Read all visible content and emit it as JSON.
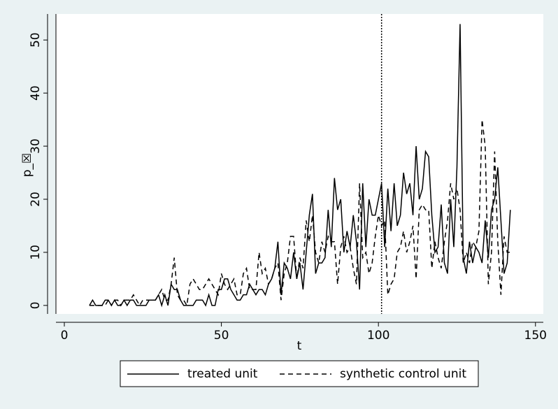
{
  "chart_data": {
    "type": "line",
    "x_label": "t",
    "y_label": "p_☒",
    "x": [
      8,
      9,
      10,
      11,
      12,
      13,
      14,
      15,
      16,
      17,
      18,
      19,
      20,
      21,
      22,
      23,
      24,
      25,
      26,
      27,
      28,
      29,
      30,
      31,
      32,
      33,
      34,
      35,
      36,
      37,
      38,
      39,
      40,
      41,
      42,
      43,
      44,
      45,
      46,
      47,
      48,
      49,
      50,
      51,
      52,
      53,
      54,
      55,
      56,
      57,
      58,
      59,
      60,
      61,
      62,
      63,
      64,
      65,
      66,
      67,
      68,
      69,
      70,
      71,
      72,
      73,
      74,
      75,
      76,
      77,
      78,
      79,
      80,
      81,
      82,
      83,
      84,
      85,
      86,
      87,
      88,
      89,
      90,
      91,
      92,
      93,
      94,
      95,
      96,
      97,
      98,
      99,
      100,
      101,
      102,
      103,
      104,
      105,
      106,
      107,
      108,
      109,
      110,
      111,
      112,
      113,
      114,
      115,
      116,
      117,
      118,
      119,
      120,
      121,
      122,
      123,
      124,
      125,
      126,
      127,
      128,
      129,
      130,
      131,
      132,
      133,
      134,
      135,
      136,
      137,
      138,
      139,
      140,
      141,
      142
    ],
    "series": [
      {
        "name": "treated unit",
        "color": "#000000",
        "line_style": "solid",
        "values": [
          0,
          1,
          0,
          0,
          0,
          1,
          1,
          0,
          1,
          0,
          0,
          1,
          0,
          1,
          1,
          0,
          0,
          0,
          0,
          1,
          1,
          1,
          2,
          0,
          2,
          0,
          4,
          3,
          3,
          1,
          0,
          0,
          0,
          0,
          1,
          1,
          1,
          0,
          2,
          0,
          0,
          3,
          3,
          5,
          5,
          3,
          2,
          1,
          1,
          2,
          2,
          4,
          3,
          2,
          3,
          3,
          2,
          4,
          5,
          7,
          12,
          2,
          8,
          7,
          5,
          10,
          5,
          8,
          3,
          10,
          17,
          21,
          6,
          8,
          8,
          9,
          18,
          11,
          24,
          18,
          20,
          10,
          14,
          11,
          17,
          12,
          3,
          23,
          11,
          20,
          17,
          17,
          20,
          23,
          11,
          22,
          14,
          23,
          15,
          17,
          25,
          21,
          23,
          17,
          30,
          20,
          22,
          29,
          28,
          17,
          10,
          11,
          19,
          8,
          6,
          20,
          11,
          26,
          53,
          9,
          6,
          12,
          8,
          11,
          10,
          8,
          16,
          9,
          18,
          20,
          26,
          16,
          6,
          8,
          18
        ]
      },
      {
        "name": "synthetic control unit",
        "color": "#000000",
        "line_style": "dashed",
        "values": [
          0,
          0,
          0,
          0,
          0,
          0,
          1,
          0,
          1,
          1,
          0,
          1,
          1,
          1,
          2,
          1,
          0,
          1,
          1,
          1,
          1,
          1,
          2,
          3,
          1,
          1,
          4,
          9,
          2,
          1,
          1,
          0,
          4,
          5,
          4,
          3,
          3,
          4,
          5,
          4,
          3,
          2,
          6,
          4,
          3,
          4,
          5,
          2,
          2,
          6,
          7,
          3,
          3,
          3,
          10,
          6,
          7,
          4,
          5,
          7,
          8,
          1,
          6,
          8,
          13,
          13,
          5,
          9,
          7,
          16,
          12,
          17,
          10,
          8,
          12,
          10,
          13,
          12,
          12,
          4,
          11,
          13,
          10,
          11,
          7,
          4,
          23,
          9,
          10,
          6,
          8,
          13,
          17,
          15,
          16,
          2,
          4,
          5,
          10,
          11,
          14,
          10,
          12,
          15,
          5,
          18,
          19,
          18,
          18,
          7,
          12,
          9,
          7,
          12,
          16,
          23,
          20,
          22,
          18,
          8,
          10,
          8,
          12,
          11,
          14,
          35,
          30,
          4,
          10,
          29,
          12,
          2,
          13,
          10,
          10
        ]
      }
    ],
    "xlim": [
      -2.67,
      152.5
    ],
    "ylim": [
      -1.6,
      54.9
    ],
    "xticks": [
      0,
      50,
      100,
      150
    ],
    "yticks": [
      0,
      10,
      20,
      30,
      40,
      50
    ],
    "xline": 101,
    "grid": false,
    "legend": "bottom"
  }
}
